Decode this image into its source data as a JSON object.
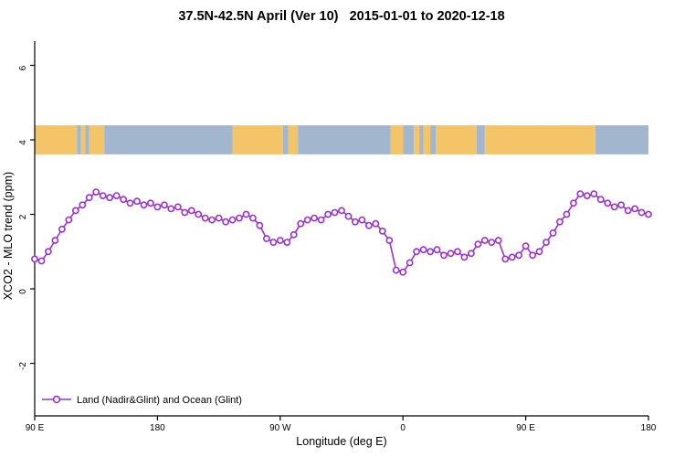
{
  "title": "37.5N-42.5N April (Ver 10)   2015-01-01 to 2020-12-18",
  "legend": {
    "label": "Land (Nadir&Glint) and Ocean (Glint)"
  },
  "colors": {
    "series": "#9932CC",
    "marker_fill": "#FFFFFF",
    "land": "#F4C469",
    "ocean": "#A2B7CD",
    "axis": "#000000"
  },
  "chart_data": {
    "type": "line",
    "title": "37.5N-42.5N April (Ver 10)   2015-01-01 to 2020-12-18",
    "xlabel": "Longitude (deg E)",
    "ylabel": "XCO2 - MLO trend (ppm)",
    "xlim": [
      90,
      540
    ],
    "ylim": [
      -3.41,
      6.65
    ],
    "grid": false,
    "legend_position": "bottom-left",
    "x_ticks": [
      {
        "value": 90,
        "label": "90 E"
      },
      {
        "value": 180,
        "label": "180"
      },
      {
        "value": 270,
        "label": "90 W"
      },
      {
        "value": 360,
        "label": "0"
      },
      {
        "value": 450,
        "label": "90 E"
      },
      {
        "value": 540,
        "label": "180"
      }
    ],
    "y_ticks": [
      {
        "value": -2,
        "label": "-2"
      },
      {
        "value": 0,
        "label": "0"
      },
      {
        "value": 2,
        "label": "2"
      },
      {
        "value": 4,
        "label": "4"
      },
      {
        "value": 6,
        "label": "6"
      }
    ],
    "series": [
      {
        "name": "Land (Nadir&Glint) and Ocean (Glint)",
        "marker": "open-circle",
        "x": [
          90,
          95,
          100,
          105,
          110,
          115,
          120,
          125,
          130,
          135,
          140,
          145,
          150,
          155,
          160,
          165,
          170,
          175,
          180,
          185,
          190,
          195,
          200,
          205,
          210,
          215,
          220,
          225,
          230,
          235,
          240,
          245,
          250,
          255,
          260,
          265,
          270,
          275,
          280,
          285,
          290,
          295,
          300,
          305,
          310,
          315,
          320,
          325,
          330,
          335,
          340,
          345,
          350,
          355,
          360,
          365,
          370,
          375,
          380,
          385,
          390,
          395,
          400,
          405,
          410,
          415,
          420,
          425,
          430,
          435,
          440,
          445,
          450,
          455,
          460,
          465,
          470,
          475,
          480,
          485,
          490,
          495,
          500,
          505,
          510,
          515,
          520,
          525,
          530,
          535,
          540
        ],
        "y": [
          0.8,
          0.75,
          1.0,
          1.3,
          1.6,
          1.85,
          2.1,
          2.25,
          2.45,
          2.6,
          2.5,
          2.45,
          2.5,
          2.4,
          2.3,
          2.35,
          2.25,
          2.3,
          2.2,
          2.25,
          2.15,
          2.2,
          2.05,
          2.1,
          2.0,
          1.9,
          1.85,
          1.9,
          1.8,
          1.85,
          1.9,
          2.0,
          1.9,
          1.7,
          1.35,
          1.25,
          1.3,
          1.25,
          1.45,
          1.75,
          1.85,
          1.9,
          1.85,
          2.0,
          2.05,
          2.1,
          1.95,
          1.8,
          1.85,
          1.7,
          1.75,
          1.55,
          1.3,
          0.5,
          0.45,
          0.7,
          1.0,
          1.05,
          1.0,
          1.05,
          0.9,
          0.95,
          1.0,
          0.85,
          0.95,
          1.2,
          1.3,
          1.25,
          1.3,
          0.8,
          0.85,
          0.9,
          1.15,
          0.9,
          1.0,
          1.25,
          1.5,
          1.8,
          2.0,
          2.3,
          2.55,
          2.5,
          2.55,
          2.4,
          2.3,
          2.2,
          2.25,
          2.1,
          2.15,
          2.05,
          2.0
        ]
      }
    ],
    "land_ocean_band": {
      "y_value": 4,
      "height_ppm": 0.3,
      "segments": [
        {
          "type": "land",
          "start": 90,
          "end": 121
        },
        {
          "type": "ocean",
          "start": 121,
          "end": 124
        },
        {
          "type": "land",
          "start": 124,
          "end": 127
        },
        {
          "type": "ocean",
          "start": 127,
          "end": 130
        },
        {
          "type": "land",
          "start": 130,
          "end": 141
        },
        {
          "type": "ocean",
          "start": 141,
          "end": 235
        },
        {
          "type": "land",
          "start": 235,
          "end": 272
        },
        {
          "type": "ocean",
          "start": 272,
          "end": 276
        },
        {
          "type": "land",
          "start": 276,
          "end": 283
        },
        {
          "type": "ocean",
          "start": 283,
          "end": 351
        },
        {
          "type": "land",
          "start": 351,
          "end": 360
        },
        {
          "type": "ocean",
          "start": 360,
          "end": 368
        },
        {
          "type": "land",
          "start": 368,
          "end": 372
        },
        {
          "type": "ocean",
          "start": 372,
          "end": 375
        },
        {
          "type": "land",
          "start": 375,
          "end": 380
        },
        {
          "type": "ocean",
          "start": 380,
          "end": 384
        },
        {
          "type": "land",
          "start": 384,
          "end": 414
        },
        {
          "type": "ocean",
          "start": 414,
          "end": 420
        },
        {
          "type": "land",
          "start": 420,
          "end": 501
        },
        {
          "type": "ocean",
          "start": 501,
          "end": 540
        }
      ]
    }
  }
}
